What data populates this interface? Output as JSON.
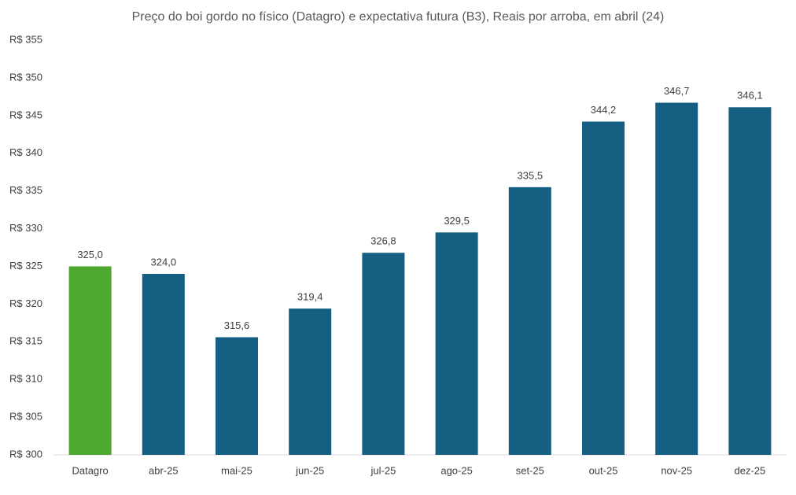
{
  "chart_data": {
    "type": "bar",
    "title": "Preço do boi gordo no físico (Datagro) e expectativa futura (B3), Reais por arroba, em abril (24)",
    "categories": [
      "Datagro",
      "abr-25",
      "mai-25",
      "jun-25",
      "jul-25",
      "ago-25",
      "set-25",
      "out-25",
      "nov-25",
      "dez-25"
    ],
    "values": [
      325.0,
      324.0,
      315.6,
      319.4,
      326.8,
      329.5,
      335.5,
      344.2,
      346.7,
      346.1
    ],
    "value_labels": [
      "325,0",
      "324,0",
      "315,6",
      "319,4",
      "326,8",
      "329,5",
      "335,5",
      "344,2",
      "346,7",
      "346,1"
    ],
    "colors": [
      "#4ea72e",
      "#156082",
      "#156082",
      "#156082",
      "#156082",
      "#156082",
      "#156082",
      "#156082",
      "#156082",
      "#156082"
    ],
    "ylim": [
      300,
      355
    ],
    "yticks": [
      {
        "value": 300,
        "label": "R$ 300"
      },
      {
        "value": 305,
        "label": "R$ 305"
      },
      {
        "value": 310,
        "label": "R$ 310"
      },
      {
        "value": 315,
        "label": "R$ 315"
      },
      {
        "value": 320,
        "label": "R$ 320"
      },
      {
        "value": 325,
        "label": "R$ 325"
      },
      {
        "value": 330,
        "label": "R$ 330"
      },
      {
        "value": 335,
        "label": "R$ 335"
      },
      {
        "value": 340,
        "label": "R$ 340"
      },
      {
        "value": 345,
        "label": "R$ 345"
      },
      {
        "value": 350,
        "label": "R$ 350"
      },
      {
        "value": 355,
        "label": "R$ 355"
      }
    ],
    "grid": false
  }
}
